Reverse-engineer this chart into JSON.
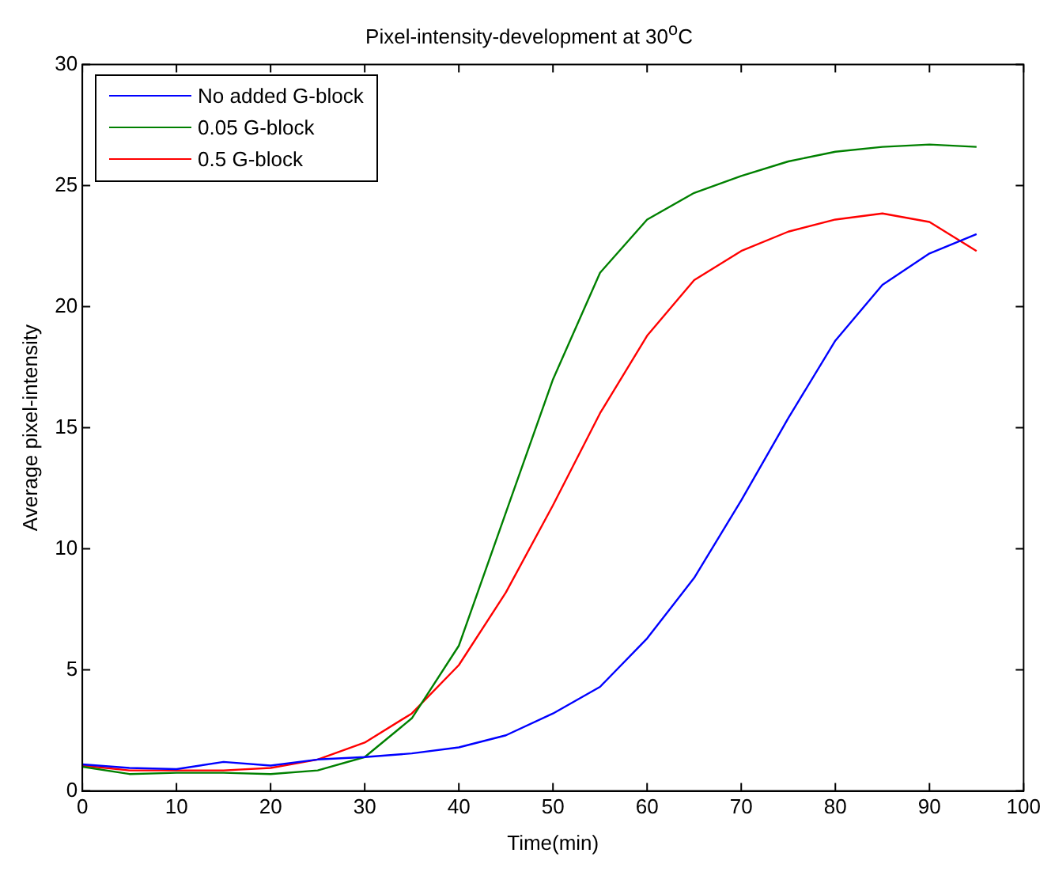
{
  "chart_data": {
    "type": "line",
    "title": "Pixel-intensity-development at 30$^{o}$C",
    "xlabel": "Time(min)",
    "ylabel": "Average pixel-intensity",
    "x": [
      0,
      5,
      10,
      15,
      20,
      25,
      30,
      35,
      40,
      45,
      50,
      55,
      60,
      65,
      70,
      75,
      80,
      85,
      90,
      95
    ],
    "series": [
      {
        "name": "No added G-block",
        "color": "#0000ff",
        "values": [
          1.1,
          0.95,
          0.9,
          1.2,
          1.05,
          1.3,
          1.4,
          1.55,
          1.8,
          2.3,
          3.2,
          4.3,
          6.3,
          8.8,
          12.0,
          15.4,
          18.6,
          20.9,
          22.2,
          23.0
        ]
      },
      {
        "name": "0.05 G-block",
        "color": "#008000",
        "values": [
          1.0,
          0.7,
          0.75,
          0.75,
          0.7,
          0.85,
          1.4,
          3.0,
          6.0,
          11.5,
          17.0,
          21.4,
          23.6,
          24.7,
          25.4,
          26.0,
          26.4,
          26.6,
          26.7,
          26.6
        ]
      },
      {
        "name": "0.5 G-block",
        "color": "#ff0000",
        "values": [
          1.05,
          0.85,
          0.85,
          0.85,
          0.95,
          1.3,
          2.0,
          3.2,
          5.2,
          8.2,
          11.8,
          15.6,
          18.8,
          21.1,
          22.3,
          23.1,
          23.6,
          23.85,
          23.5,
          22.3
        ]
      }
    ],
    "xlim": [
      0,
      100
    ],
    "xticks": [
      0,
      10,
      20,
      30,
      40,
      50,
      60,
      70,
      80,
      90,
      100
    ],
    "ylim": [
      0,
      30
    ],
    "yticks": [
      0,
      5,
      10,
      15,
      20,
      25,
      30
    ],
    "grid": false,
    "legend": "top left",
    "marker": "none",
    "line_style": "solid"
  }
}
